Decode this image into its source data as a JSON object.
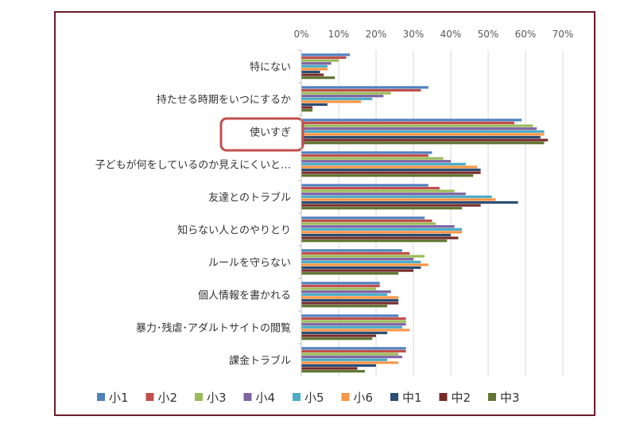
{
  "chart_data": {
    "type": "bar",
    "orientation": "horizontal",
    "categories": [
      "特にない",
      "持たせる時期をいつにするか",
      "使いすぎ",
      "子どもが何をしているのか見えにくいと…",
      "友達とのトラブル",
      "知らない人とのやりとり",
      "ルールを守らない",
      "個人情報を書かれる",
      "暴力･残虐･アダルトサイトの閲覧",
      "課金トラブル"
    ],
    "highlighted_category": "使いすぎ",
    "x_ticks": [
      "0%",
      "10%",
      "20%",
      "30%",
      "40%",
      "50%",
      "60%",
      "70%"
    ],
    "xlim": [
      0,
      70
    ],
    "x_axis_position": "top",
    "grid": true,
    "legend": "bottom",
    "series": [
      {
        "name": "小1",
        "color": "#4F81BD",
        "values": [
          13,
          34,
          59,
          35,
          34,
          33,
          27,
          21,
          26,
          28
        ]
      },
      {
        "name": "小2",
        "color": "#C0504D",
        "values": [
          12,
          32,
          57,
          34,
          37,
          35,
          29,
          21,
          28,
          28
        ]
      },
      {
        "name": "小3",
        "color": "#9BBB59",
        "values": [
          10,
          24,
          62,
          38,
          41,
          36,
          33,
          20,
          28,
          26
        ]
      },
      {
        "name": "小4",
        "color": "#8064A2",
        "values": [
          8,
          22,
          63,
          40,
          44,
          41,
          30,
          24,
          28,
          27
        ]
      },
      {
        "name": "小5",
        "color": "#4BACC6",
        "values": [
          7,
          19,
          65,
          44,
          51,
          43,
          32,
          23,
          27,
          23
        ]
      },
      {
        "name": "小6",
        "color": "#F79646",
        "values": [
          7,
          16,
          65,
          47,
          52,
          43,
          34,
          26,
          29,
          26
        ]
      },
      {
        "name": "中1",
        "color": "#2C4D75",
        "values": [
          5,
          7,
          64,
          48,
          58,
          40,
          32,
          26,
          23,
          20
        ]
      },
      {
        "name": "中2",
        "color": "#772C2A",
        "values": [
          6,
          3,
          66,
          48,
          48,
          42,
          30,
          26,
          20,
          15
        ]
      },
      {
        "name": "中3",
        "color": "#5F7530",
        "values": [
          9,
          3,
          65,
          46,
          43,
          39,
          26,
          23,
          19,
          17
        ]
      }
    ]
  }
}
